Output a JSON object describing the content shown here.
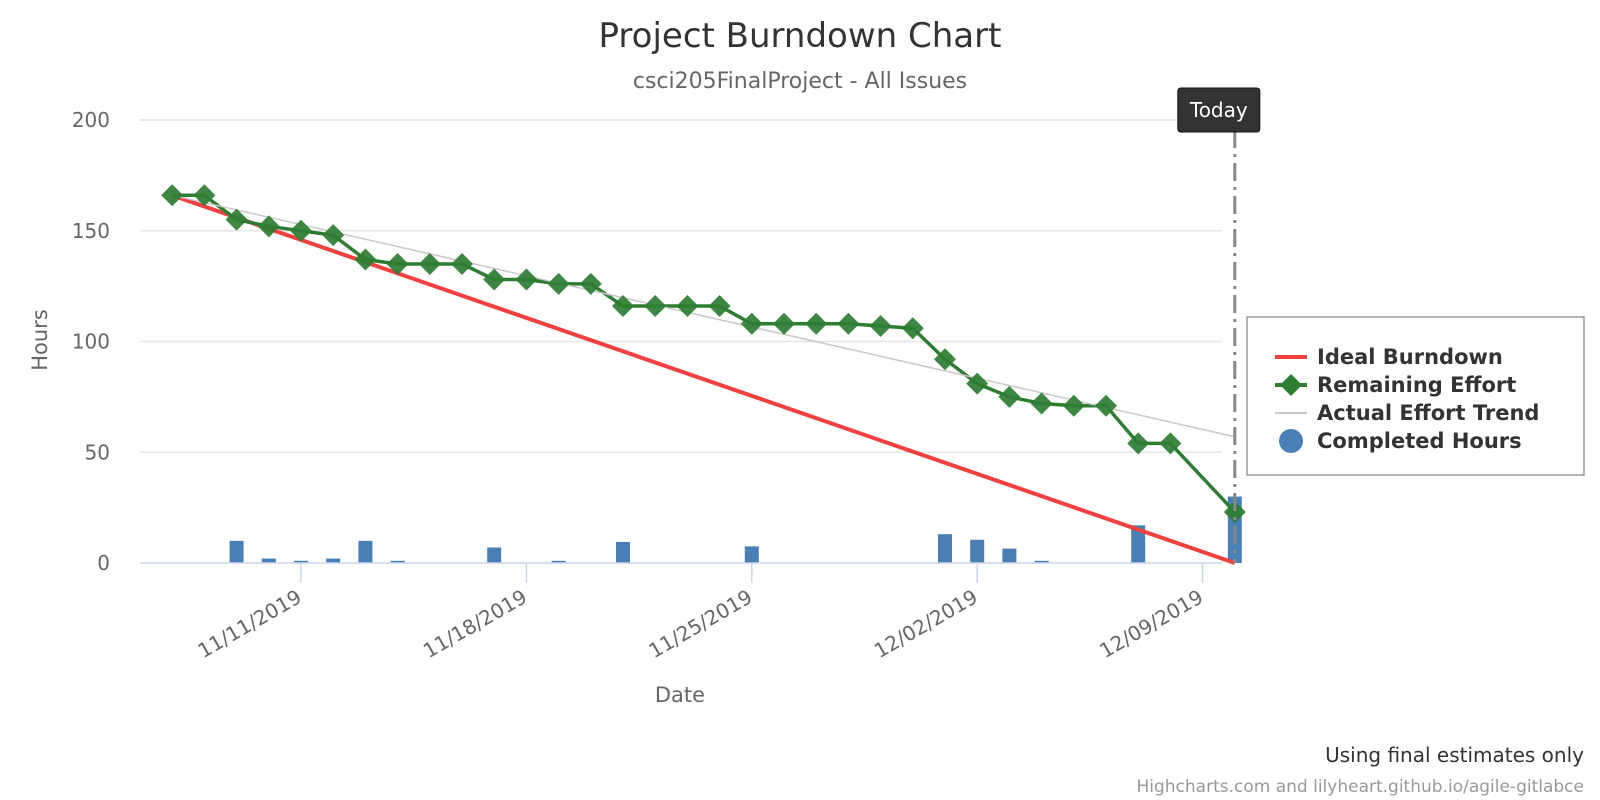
{
  "chart_data": {
    "type": "line",
    "title": "Project Burndown Chart",
    "subtitle": "csci205FinalProject - All Issues",
    "xlabel": "Date",
    "ylabel": "Hours",
    "ylim": [
      0,
      200
    ],
    "yticks": [
      0,
      50,
      100,
      150,
      200
    ],
    "xtick_labels": [
      "11/11/2019",
      "11/18/2019",
      "11/25/2019",
      "12/02/2019",
      "12/09/2019"
    ],
    "grid": true,
    "legend": "right",
    "today_label": "Today",
    "today_date": "2019-12-10",
    "series": [
      {
        "name": "Ideal Burndown",
        "kind": "line",
        "color": "#f04040",
        "points": [
          [
            "2019-11-07",
            166
          ],
          [
            "2019-12-10",
            0
          ]
        ]
      },
      {
        "name": "Remaining Effort",
        "kind": "line-markers",
        "color": "#2e7d32",
        "points": [
          [
            "2019-11-07",
            166
          ],
          [
            "2019-11-08",
            166
          ],
          [
            "2019-11-09",
            155
          ],
          [
            "2019-11-10",
            152
          ],
          [
            "2019-11-11",
            150
          ],
          [
            "2019-11-12",
            148
          ],
          [
            "2019-11-13",
            137
          ],
          [
            "2019-11-14",
            135
          ],
          [
            "2019-11-15",
            135
          ],
          [
            "2019-11-16",
            135
          ],
          [
            "2019-11-17",
            128
          ],
          [
            "2019-11-18",
            128
          ],
          [
            "2019-11-19",
            126
          ],
          [
            "2019-11-20",
            126
          ],
          [
            "2019-11-21",
            116
          ],
          [
            "2019-11-22",
            116
          ],
          [
            "2019-11-23",
            116
          ],
          [
            "2019-11-24",
            116
          ],
          [
            "2019-11-25",
            108
          ],
          [
            "2019-11-26",
            108
          ],
          [
            "2019-11-27",
            108
          ],
          [
            "2019-11-28",
            108
          ],
          [
            "2019-11-29",
            107
          ],
          [
            "2019-11-30",
            106
          ],
          [
            "2019-12-01",
            92
          ],
          [
            "2019-12-02",
            81
          ],
          [
            "2019-12-03",
            75
          ],
          [
            "2019-12-04",
            72
          ],
          [
            "2019-12-05",
            71
          ],
          [
            "2019-12-06",
            71
          ],
          [
            "2019-12-07",
            54
          ],
          [
            "2019-12-08",
            54
          ],
          [
            "2019-12-10",
            23
          ]
        ]
      },
      {
        "name": "Actual Effort Trend",
        "kind": "line",
        "color": "#c8c8c8",
        "points": [
          [
            "2019-11-07",
            166
          ],
          [
            "2019-12-10",
            57
          ]
        ]
      },
      {
        "name": "Completed Hours",
        "kind": "bar",
        "color": "#4a7fb5",
        "points": [
          [
            "2019-11-09",
            10
          ],
          [
            "2019-11-10",
            2
          ],
          [
            "2019-11-11",
            1
          ],
          [
            "2019-11-12",
            2
          ],
          [
            "2019-11-13",
            10
          ],
          [
            "2019-11-14",
            1
          ],
          [
            "2019-11-17",
            7
          ],
          [
            "2019-11-19",
            1
          ],
          [
            "2019-11-21",
            9.5
          ],
          [
            "2019-11-25",
            7.5
          ],
          [
            "2019-12-01",
            13
          ],
          [
            "2019-12-02",
            10.5
          ],
          [
            "2019-12-03",
            6.5
          ],
          [
            "2019-12-04",
            1
          ],
          [
            "2019-12-07",
            17
          ],
          [
            "2019-12-10",
            30
          ]
        ]
      }
    ]
  },
  "footer": {
    "note": "Using final estimates only",
    "credit": "Highcharts.com and lilyheart.github.io/agile-gitlabce"
  }
}
